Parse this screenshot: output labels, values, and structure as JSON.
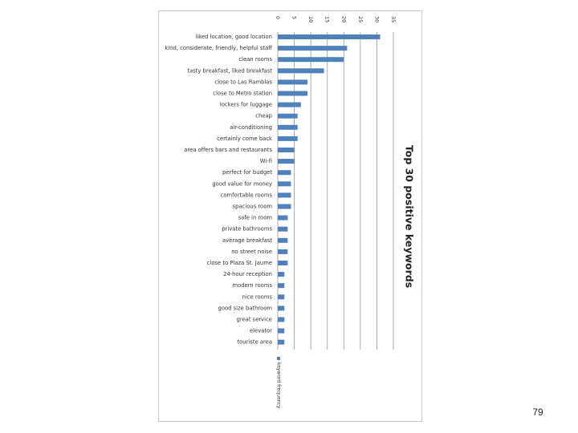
{
  "slide": {
    "number": "79"
  },
  "chart_data": {
    "type": "bar",
    "orientation": "horizontal",
    "title": "Top 30 positive keywords",
    "categories": [
      "liked location, good location",
      "kind, considerate, friendly, helpful staff",
      "clean rooms",
      "tasty breakfast, liked breakfast",
      "close to Las Ramblas",
      "close to Metro station",
      "lockers for luggage",
      "cheap",
      "air-conditioning",
      "certainly come back",
      "area offers bars and restaurants",
      "Wi-fi",
      "perfect for budget",
      "good value for money",
      "comfortable rooms",
      "spacious room",
      "safe in room",
      "private bathrooms",
      "average breakfast",
      "no street noise",
      "close to Plaza St. Jaume",
      "24-hour reception",
      "modern rooms",
      "nice rooms",
      "good size bathroom",
      "great service",
      "elevator",
      "touriste area"
    ],
    "series": [
      {
        "name": "keyword frequency",
        "values": [
          31,
          21,
          20,
          14,
          9,
          9,
          7,
          6,
          6,
          6,
          5,
          5,
          4,
          4,
          4,
          4,
          3,
          3,
          3,
          3,
          3,
          2,
          2,
          2,
          2,
          2,
          2,
          2
        ]
      }
    ],
    "xticks": [
      "0",
      "5",
      "10",
      "15",
      "20",
      "25",
      "30",
      "35"
    ],
    "xlim": [
      0,
      35
    ],
    "grid": true,
    "legend": "bottom",
    "rotation": "90 degrees clockwise",
    "colors": {
      "bar": "#4f81bd",
      "grid": "#9a9a9a",
      "legend_swatch": "#4f81bd"
    }
  }
}
